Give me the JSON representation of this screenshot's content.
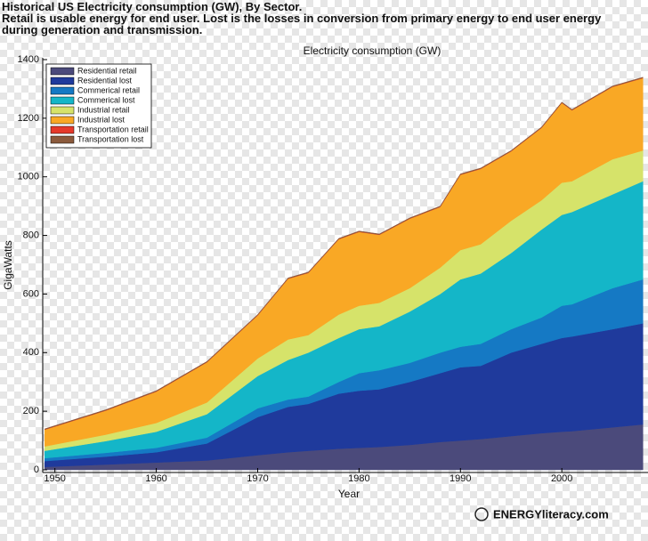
{
  "header": {
    "lines": [
      "Historical US Electricity consumption (GW), By Sector.",
      "Retail is usable energy for end user. Lost is the losses in conversion from primary energy to end user energy",
      "during generation and transmission."
    ]
  },
  "logo": "ENERGYliteracy.com",
  "chart_data": {
    "type": "stacked-area",
    "title": "Electricity consumption (GW)",
    "x_label": "Year",
    "y_label": "GigaWatts",
    "x": [
      1949,
      1955,
      1960,
      1965,
      1970,
      1973,
      1975,
      1978,
      1980,
      1982,
      1985,
      1988,
      1990,
      1992,
      1995,
      1998,
      2000,
      2001,
      2005,
      2008
    ],
    "series": [
      {
        "name": "Residential retail",
        "color": "#4b4a7b",
        "values": [
          10,
          18,
          25,
          32,
          50,
          60,
          65,
          72,
          75,
          78,
          85,
          95,
          100,
          105,
          115,
          125,
          130,
          132,
          145,
          155
        ]
      },
      {
        "name": "Residential lost",
        "color": "#1f3a9c",
        "values": [
          20,
          27,
          35,
          58,
          130,
          155,
          160,
          188,
          195,
          197,
          215,
          235,
          250,
          250,
          285,
          305,
          320,
          323,
          335,
          345
        ]
      },
      {
        "name": "Commerical retail",
        "color": "#1579c4",
        "values": [
          10,
          13,
          15,
          20,
          30,
          25,
          25,
          40,
          60,
          65,
          65,
          70,
          70,
          75,
          80,
          90,
          110,
          110,
          140,
          150
        ]
      },
      {
        "name": "Commerical lost",
        "color": "#14b6c8",
        "values": [
          25,
          40,
          55,
          80,
          110,
          135,
          150,
          150,
          150,
          150,
          175,
          200,
          230,
          240,
          260,
          300,
          310,
          315,
          320,
          335
        ]
      },
      {
        "name": "Industrial retail",
        "color": "#d6e36a",
        "values": [
          15,
          22,
          30,
          40,
          60,
          70,
          60,
          80,
          80,
          80,
          80,
          90,
          100,
          100,
          110,
          100,
          110,
          105,
          120,
          105
        ]
      },
      {
        "name": "Industrial lost",
        "color": "#f9a825",
        "values": [
          57,
          82,
          107,
          137,
          147,
          207,
          212,
          257,
          252,
          232,
          237,
          207,
          257,
          257,
          237,
          247,
          272,
          242,
          247,
          247
        ]
      },
      {
        "name": "Transportation retail",
        "color": "#e5392a",
        "values": [
          1,
          1,
          1,
          1,
          1,
          1,
          1,
          1,
          1,
          1,
          1,
          1,
          1,
          1,
          1,
          1,
          1,
          1,
          1,
          1
        ]
      },
      {
        "name": "Transportation lost",
        "color": "#8b5a3c",
        "values": [
          2,
          2,
          2,
          2,
          2,
          2,
          2,
          2,
          2,
          2,
          2,
          2,
          2,
          2,
          2,
          2,
          2,
          2,
          2,
          2
        ]
      }
    ],
    "xlim": [
      1948.8,
      2008.5
    ],
    "xticks": [
      1950,
      1960,
      1970,
      1980,
      1990,
      2000
    ],
    "ylim": [
      0,
      1400
    ],
    "yticks": [
      0,
      200,
      400,
      600,
      800,
      1000,
      1200,
      1400
    ],
    "legend": "upper-left"
  }
}
